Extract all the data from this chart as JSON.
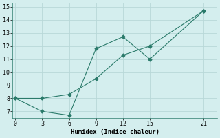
{
  "line1_x": [
    0,
    3,
    6,
    9,
    12,
    15,
    21
  ],
  "line1_y": [
    8.0,
    8.0,
    8.3,
    9.5,
    11.3,
    12.0,
    14.7
  ],
  "line2_x": [
    0,
    3,
    6,
    9,
    12,
    15,
    21
  ],
  "line2_y": [
    8.0,
    7.0,
    6.7,
    11.8,
    12.7,
    11.0,
    14.7
  ],
  "line_color": "#2a7a6a",
  "bg_color": "#d4eeee",
  "grid_color": "#b8d8d8",
  "xlabel": "Humidex (Indice chaleur)",
  "xlim": [
    -0.3,
    22.5
  ],
  "ylim": [
    6.5,
    15.3
  ],
  "xticks": [
    0,
    3,
    6,
    9,
    12,
    15,
    21
  ],
  "yticks": [
    7,
    8,
    9,
    10,
    11,
    12,
    13,
    14,
    15
  ],
  "marker": "D",
  "marker_size": 2.5,
  "linewidth": 0.8
}
